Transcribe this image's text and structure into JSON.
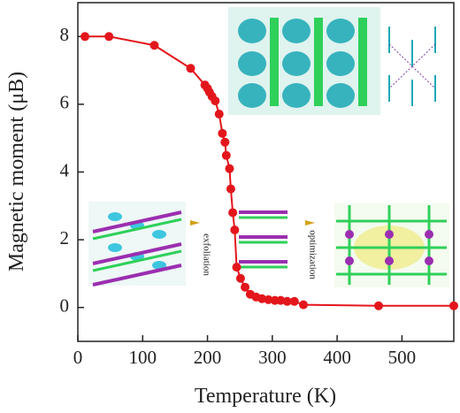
{
  "chart_data": {
    "type": "line",
    "x_label": "Temperature (K)",
    "y_label": "Magnetic moment (μB)",
    "annotations": [
      "exfoliation",
      "optimization"
    ],
    "x": [
      11,
      48,
      118,
      174,
      196,
      200,
      203,
      207,
      212,
      218,
      223,
      227,
      229,
      234,
      236,
      239,
      242,
      245,
      251,
      258,
      266,
      275,
      284,
      294,
      304,
      313,
      323,
      334,
      348,
      464,
      580
    ],
    "series": [
      {
        "color": "#e3161c",
        "values": [
          8.0,
          8.0,
          7.74,
          7.06,
          6.57,
          6.47,
          6.36,
          6.23,
          6.1,
          5.71,
          5.14,
          4.88,
          4.49,
          4.1,
          3.5,
          2.8,
          2.29,
          1.19,
          0.86,
          0.6,
          0.39,
          0.31,
          0.26,
          0.23,
          0.21,
          0.21,
          0.18,
          0.18,
          0.08,
          0.05,
          0.05
        ]
      }
    ],
    "xlim": [
      0,
      580
    ],
    "ylim": [
      -1,
      9
    ],
    "xticks": [
      0,
      100,
      200,
      300,
      400,
      500
    ],
    "yticks": [
      0,
      2,
      4,
      6,
      8
    ]
  }
}
